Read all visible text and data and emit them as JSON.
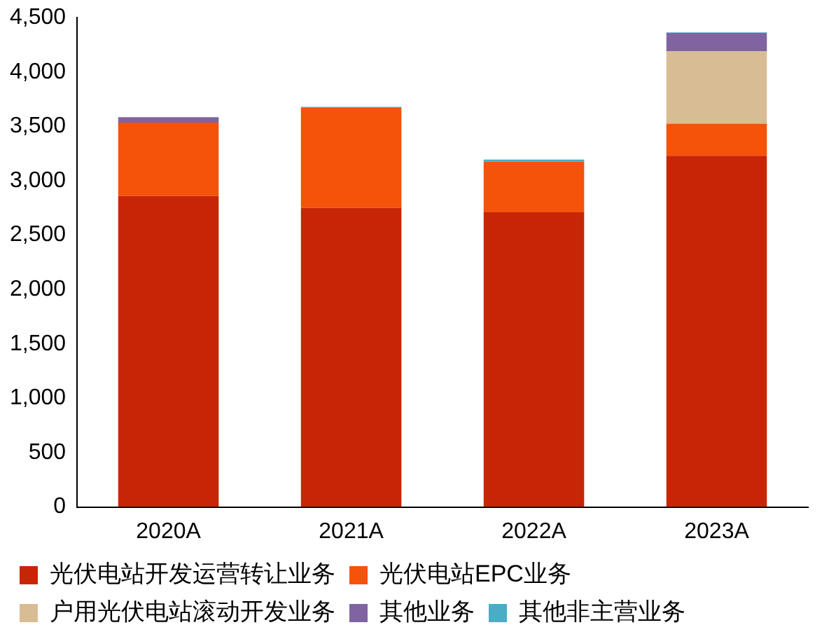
{
  "chart_data": {
    "type": "bar",
    "stacked": true,
    "categories": [
      "2020A",
      "2021A",
      "2022A",
      "2023A"
    ],
    "series": [
      {
        "name": "光伏电站开发运营转让业务",
        "color": "#c82506",
        "values": [
          2860,
          2750,
          2710,
          3230
        ]
      },
      {
        "name": "光伏电站EPC业务",
        "color": "#f5520a",
        "values": [
          675,
          920,
          465,
          295
        ]
      },
      {
        "name": "户用光伏电站滚动开发业务",
        "color": "#d8bc93",
        "values": [
          null,
          null,
          null,
          665
        ]
      },
      {
        "name": "其他业务",
        "color": "#8064a2",
        "values": [
          50,
          null,
          null,
          170
        ]
      },
      {
        "name": "其他非主营业务",
        "color": "#4bacc6",
        "values": [
          null,
          10,
          20,
          5
        ]
      }
    ],
    "ylim": [
      0,
      4500
    ],
    "yticks": [
      {
        "value": 0,
        "label": "0"
      },
      {
        "value": 500,
        "label": "500"
      },
      {
        "value": 1000,
        "label": "1,000"
      },
      {
        "value": 1500,
        "label": "1,500"
      },
      {
        "value": 2000,
        "label": "2,000"
      },
      {
        "value": 2500,
        "label": "2,500"
      },
      {
        "value": 3000,
        "label": "3,000"
      },
      {
        "value": 3500,
        "label": "3,500"
      },
      {
        "value": 4000,
        "label": "4,000"
      },
      {
        "value": 4500,
        "label": "4,500"
      }
    ],
    "grid": false,
    "legend": "bottom"
  }
}
